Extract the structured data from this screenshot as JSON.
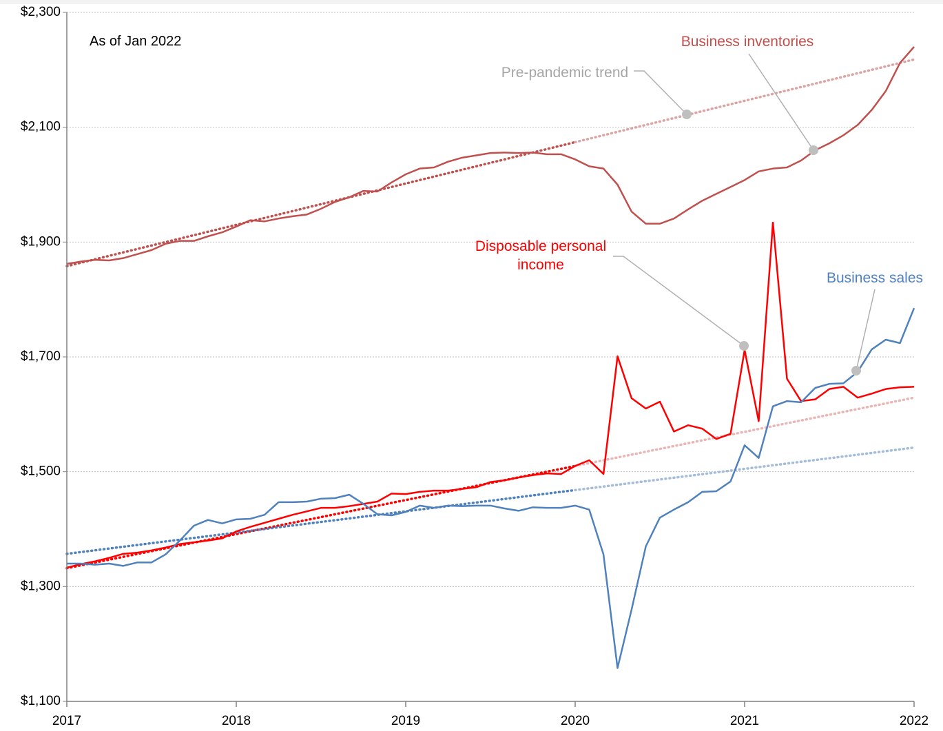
{
  "chart_data": {
    "type": "line",
    "annotations": [
      "As of Jan 2022",
      "Pre-pandemic trend"
    ],
    "x": [
      2017,
      2017.083,
      2017.167,
      2017.25,
      2017.333,
      2017.417,
      2017.5,
      2017.583,
      2017.667,
      2017.75,
      2017.833,
      2017.917,
      2018,
      2018.083,
      2018.167,
      2018.25,
      2018.333,
      2018.417,
      2018.5,
      2018.583,
      2018.667,
      2018.75,
      2018.833,
      2018.917,
      2019,
      2019.083,
      2019.167,
      2019.25,
      2019.333,
      2019.417,
      2019.5,
      2019.583,
      2019.667,
      2019.75,
      2019.833,
      2019.917,
      2020,
      2020.083,
      2020.167,
      2020.25,
      2020.333,
      2020.417,
      2020.5,
      2020.583,
      2020.667,
      2020.75,
      2020.833,
      2020.917,
      2021,
      2021.083,
      2021.167,
      2021.25,
      2021.333,
      2021.417,
      2021.5,
      2021.583,
      2021.667,
      2021.75,
      2021.833,
      2021.917,
      2022
    ],
    "series": [
      {
        "name": "Business inventories",
        "color": "#c0504d",
        "values": [
          1862,
          1866,
          1869,
          1868,
          1872,
          1879,
          1886,
          1897,
          1902,
          1902,
          1910,
          1917,
          1927,
          1938,
          1936,
          1941,
          1945,
          1948,
          1958,
          1970,
          1978,
          1989,
          1988,
          2004,
          2018,
          2028,
          2030,
          2040,
          2047,
          2051,
          2055,
          2056,
          2055,
          2056,
          2053,
          2053,
          2044,
          2032,
          2028,
          2000,
          1953,
          1932,
          1932,
          1941,
          1957,
          1972,
          1984,
          1996,
          2008,
          2023,
          2028,
          2030,
          2042,
          2060,
          2072,
          2086,
          2104,
          2130,
          2163,
          2212,
          2240
        ]
      },
      {
        "name": "Disposable personal income",
        "color": "#ff0000",
        "values": [
          1333,
          1339,
          1344,
          1350,
          1357,
          1359,
          1363,
          1368,
          1374,
          1377,
          1380,
          1384,
          1396,
          1404,
          1411,
          1418,
          1425,
          1431,
          1437,
          1437,
          1440,
          1444,
          1448,
          1462,
          1461,
          1465,
          1467,
          1467,
          1470,
          1473,
          1482,
          1485,
          1490,
          1494,
          1497,
          1496,
          1510,
          1520,
          1496,
          1701,
          1628,
          1610,
          1622,
          1570,
          1581,
          1575,
          1557,
          1566,
          1712,
          1588,
          1934,
          1662,
          1623,
          1626,
          1644,
          1648,
          1629,
          1636,
          1644,
          1647,
          1648
        ]
      },
      {
        "name": "Business sales",
        "color": "#4f81bd",
        "values": [
          1340,
          1340,
          1338,
          1340,
          1336,
          1342,
          1342,
          1356,
          1380,
          1406,
          1416,
          1410,
          1417,
          1418,
          1425,
          1447,
          1447,
          1448,
          1453,
          1454,
          1460,
          1444,
          1426,
          1424,
          1430,
          1441,
          1437,
          1441,
          1440,
          1441,
          1441,
          1436,
          1432,
          1438,
          1437,
          1437,
          1441,
          1434,
          1356,
          1158,
          1260,
          1370,
          1420,
          1434,
          1447,
          1465,
          1466,
          1483,
          1546,
          1524,
          1614,
          1623,
          1621,
          1646,
          1653,
          1654,
          1674,
          1713,
          1730,
          1724,
          1785
        ]
      }
    ],
    "trends": [
      {
        "x": [
          2017,
          2020,
          2022
        ],
        "values": [
          1858,
          2074,
          2218
        ],
        "colors": [
          "#c0504d",
          "#dba3a2"
        ]
      },
      {
        "x": [
          2017,
          2020,
          2022
        ],
        "values": [
          1332,
          1510,
          1629
        ],
        "colors": [
          "#ff0000",
          "#e9b5b5"
        ]
      },
      {
        "x": [
          2017,
          2020,
          2022
        ],
        "values": [
          1357,
          1468,
          1542
        ],
        "colors": [
          "#4f81bd",
          "#a3bcd9"
        ]
      }
    ],
    "xlim": [
      2017,
      2022
    ],
    "xticks": [
      2017,
      2018,
      2019,
      2020,
      2021,
      2022
    ],
    "ylim": [
      1100,
      2300
    ],
    "yticks": [
      {
        "value": 1100,
        "label": "$1,100"
      },
      {
        "value": 1300,
        "label": "$1,300"
      },
      {
        "value": 1500,
        "label": "$1,500"
      },
      {
        "value": 1700,
        "label": "$1,700"
      },
      {
        "value": 1900,
        "label": "$1,900"
      },
      {
        "value": 2100,
        "label": "$2,100"
      },
      {
        "value": 2300,
        "label": "$2,300"
      }
    ],
    "grid": true
  }
}
